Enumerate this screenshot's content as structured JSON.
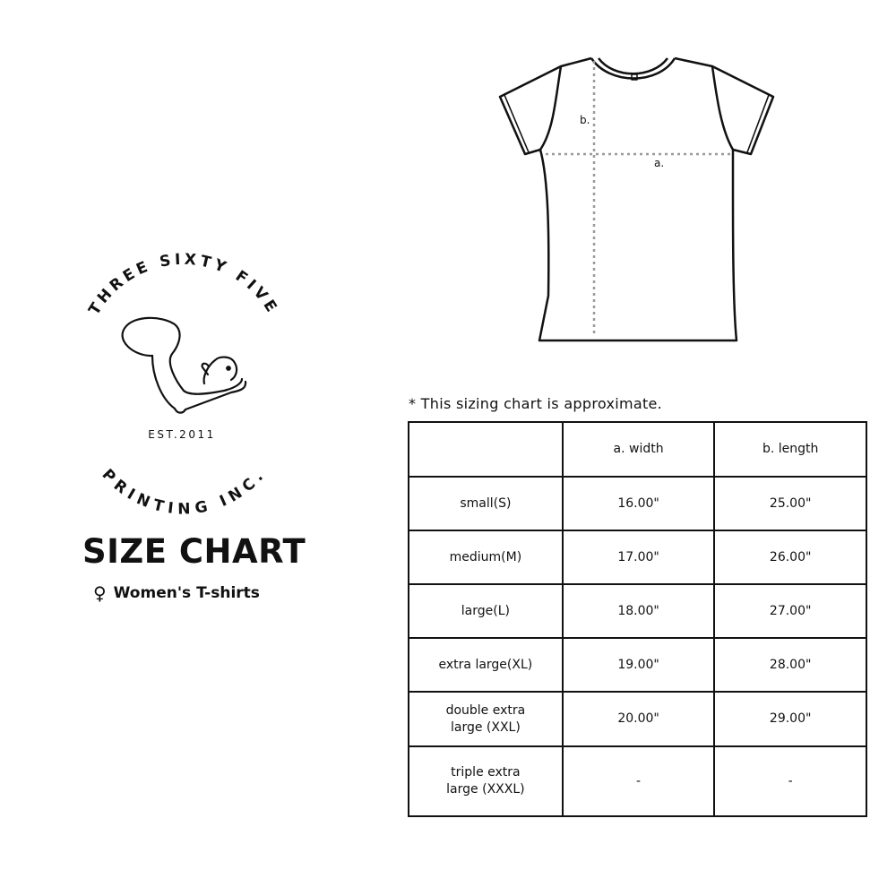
{
  "logo": {
    "top_text": "THREE SIXTY FIVE",
    "bottom_text": "PRINTING INC.",
    "established": "EST.2011"
  },
  "title": "SIZE CHART",
  "subtitle": {
    "icon": "female-symbol-icon",
    "symbol": "♀",
    "label": "Women's T-shirts"
  },
  "diagram": {
    "width_label": "a.",
    "length_label": "b."
  },
  "note": "* This sizing chart is approximate.",
  "table": {
    "headers": [
      "",
      "a. width",
      "b. length"
    ],
    "rows": [
      {
        "size": "small(S)",
        "width": "16.00\"",
        "length": "25.00\""
      },
      {
        "size": "medium(M)",
        "width": "17.00\"",
        "length": "26.00\""
      },
      {
        "size": "large(L)",
        "width": "18.00\"",
        "length": "27.00\""
      },
      {
        "size": "extra large(XL)",
        "width": "19.00\"",
        "length": "28.00\""
      },
      {
        "size": "double extra large (XXL)",
        "width": "20.00\"",
        "length": "29.00\""
      },
      {
        "size": "triple extra large (XXXL)",
        "width": "-",
        "length": "-"
      }
    ]
  }
}
